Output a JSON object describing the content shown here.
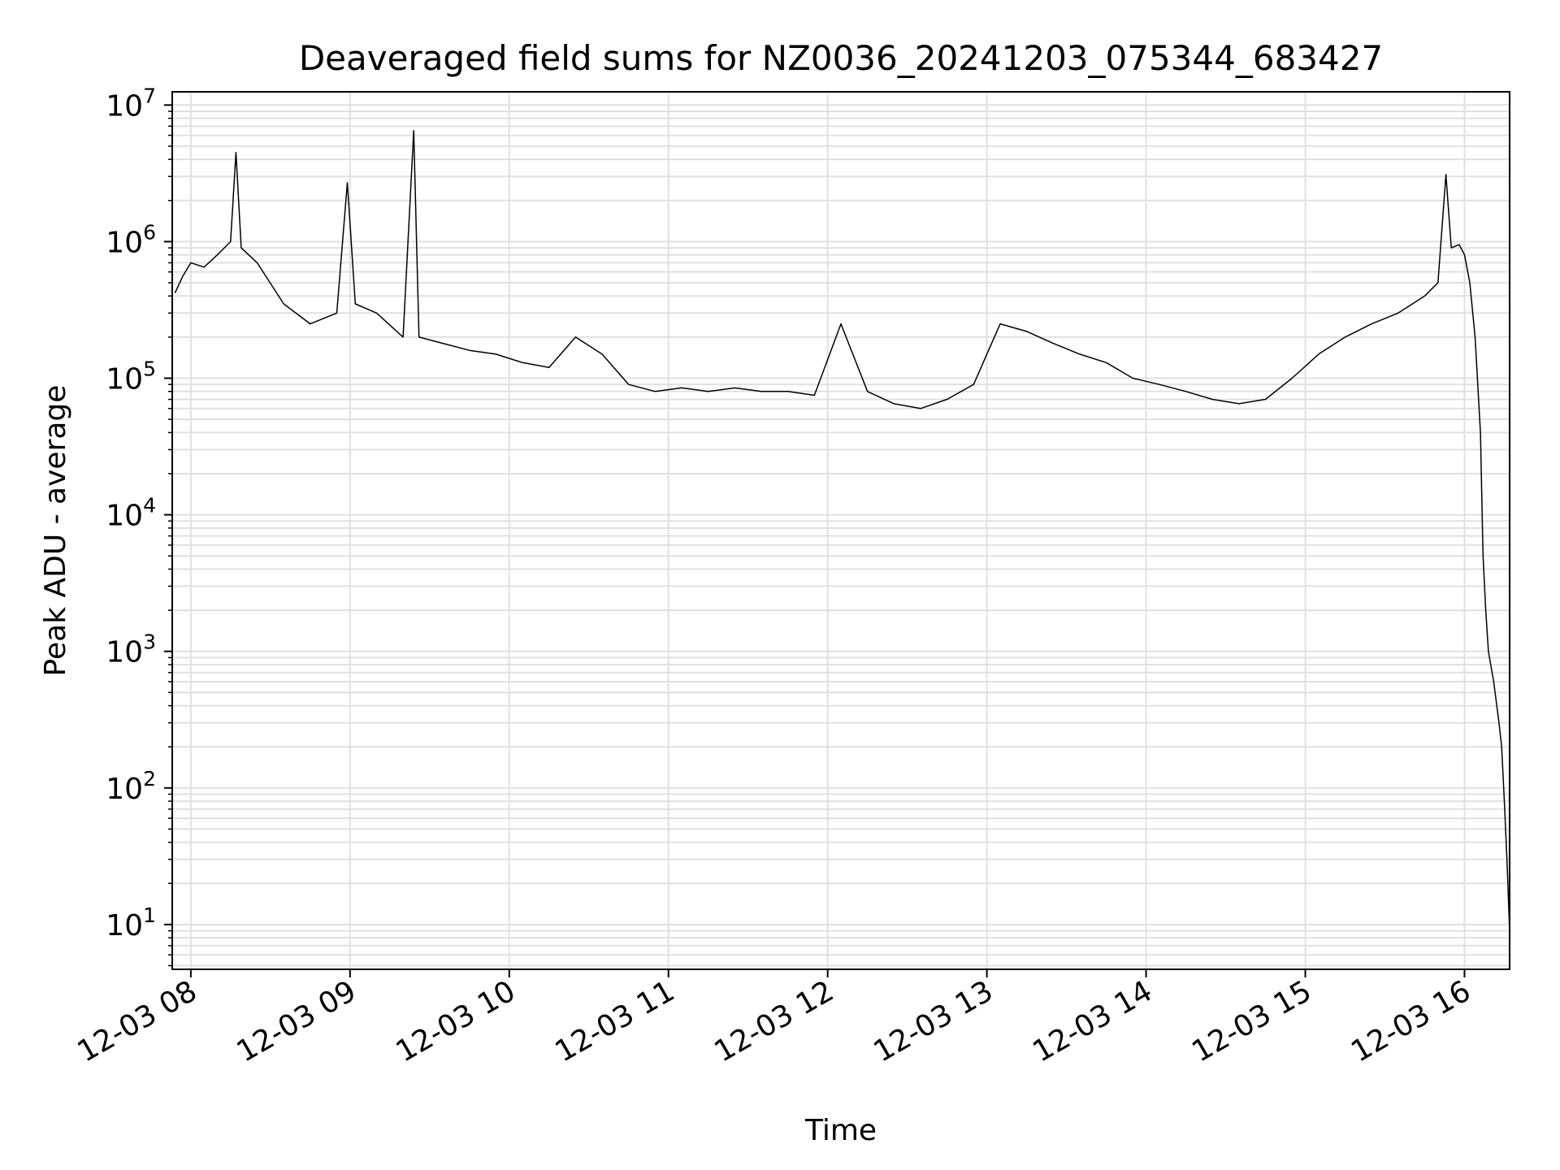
{
  "chart_data": {
    "type": "line",
    "title": "Deaveraged field sums for NZ0036_20241203_075344_683427",
    "xlabel": "Time",
    "ylabel": "Peak ADU - average",
    "yscale": "log",
    "ylim": [
      4.7,
      12500000
    ],
    "xlim": [
      "2024-12-03 07:53",
      "2024-12-03 16:17"
    ],
    "grid": true,
    "line_color": "#000000",
    "grid_color": "#e0e0e0",
    "x_ticks": [
      {
        "time": "2024-12-03 08:00",
        "label": "12-03 08"
      },
      {
        "time": "2024-12-03 09:00",
        "label": "12-03 09"
      },
      {
        "time": "2024-12-03 10:00",
        "label": "12-03 10"
      },
      {
        "time": "2024-12-03 11:00",
        "label": "12-03 11"
      },
      {
        "time": "2024-12-03 12:00",
        "label": "12-03 12"
      },
      {
        "time": "2024-12-03 13:00",
        "label": "12-03 13"
      },
      {
        "time": "2024-12-03 14:00",
        "label": "12-03 14"
      },
      {
        "time": "2024-12-03 15:00",
        "label": "12-03 15"
      },
      {
        "time": "2024-12-03 16:00",
        "label": "12-03 16"
      }
    ],
    "y_ticks": [
      {
        "value": 10,
        "base": "10",
        "exp": "1"
      },
      {
        "value": 100,
        "base": "10",
        "exp": "2"
      },
      {
        "value": 1000,
        "base": "10",
        "exp": "3"
      },
      {
        "value": 10000,
        "base": "10",
        "exp": "4"
      },
      {
        "value": 100000,
        "base": "10",
        "exp": "5"
      },
      {
        "value": 1000000,
        "base": "10",
        "exp": "6"
      },
      {
        "value": 10000000,
        "base": "10",
        "exp": "7"
      }
    ],
    "series": [
      {
        "points": [
          [
            "2024-12-03 07:54",
            420000
          ],
          [
            "2024-12-03 07:57",
            560000
          ],
          [
            "2024-12-03 08:00",
            700000
          ],
          [
            "2024-12-03 08:05",
            650000
          ],
          [
            "2024-12-03 08:10",
            800000
          ],
          [
            "2024-12-03 08:15",
            1000000
          ],
          [
            "2024-12-03 08:17",
            4500000
          ],
          [
            "2024-12-03 08:19",
            900000
          ],
          [
            "2024-12-03 08:25",
            700000
          ],
          [
            "2024-12-03 08:35",
            350000
          ],
          [
            "2024-12-03 08:45",
            250000
          ],
          [
            "2024-12-03 08:55",
            300000
          ],
          [
            "2024-12-03 08:59",
            2700000
          ],
          [
            "2024-12-03 09:02",
            350000
          ],
          [
            "2024-12-03 09:10",
            300000
          ],
          [
            "2024-12-03 09:20",
            200000
          ],
          [
            "2024-12-03 09:24",
            6500000
          ],
          [
            "2024-12-03 09:26",
            200000
          ],
          [
            "2024-12-03 09:35",
            180000
          ],
          [
            "2024-12-03 09:45",
            160000
          ],
          [
            "2024-12-03 09:55",
            150000
          ],
          [
            "2024-12-03 10:05",
            130000
          ],
          [
            "2024-12-03 10:15",
            120000
          ],
          [
            "2024-12-03 10:25",
            200000
          ],
          [
            "2024-12-03 10:35",
            150000
          ],
          [
            "2024-12-03 10:45",
            90000
          ],
          [
            "2024-12-03 10:55",
            80000
          ],
          [
            "2024-12-03 11:05",
            85000
          ],
          [
            "2024-12-03 11:15",
            80000
          ],
          [
            "2024-12-03 11:25",
            85000
          ],
          [
            "2024-12-03 11:35",
            80000
          ],
          [
            "2024-12-03 11:45",
            80000
          ],
          [
            "2024-12-03 11:55",
            75000
          ],
          [
            "2024-12-03 12:05",
            250000
          ],
          [
            "2024-12-03 12:15",
            80000
          ],
          [
            "2024-12-03 12:25",
            65000
          ],
          [
            "2024-12-03 12:35",
            60000
          ],
          [
            "2024-12-03 12:45",
            70000
          ],
          [
            "2024-12-03 12:55",
            90000
          ],
          [
            "2024-12-03 13:05",
            250000
          ],
          [
            "2024-12-03 13:15",
            220000
          ],
          [
            "2024-12-03 13:25",
            180000
          ],
          [
            "2024-12-03 13:35",
            150000
          ],
          [
            "2024-12-03 13:45",
            130000
          ],
          [
            "2024-12-03 13:55",
            100000
          ],
          [
            "2024-12-03 14:05",
            90000
          ],
          [
            "2024-12-03 14:15",
            80000
          ],
          [
            "2024-12-03 14:25",
            70000
          ],
          [
            "2024-12-03 14:35",
            65000
          ],
          [
            "2024-12-03 14:45",
            70000
          ],
          [
            "2024-12-03 14:55",
            100000
          ],
          [
            "2024-12-03 15:05",
            150000
          ],
          [
            "2024-12-03 15:15",
            200000
          ],
          [
            "2024-12-03 15:25",
            250000
          ],
          [
            "2024-12-03 15:35",
            300000
          ],
          [
            "2024-12-03 15:45",
            400000
          ],
          [
            "2024-12-03 15:50",
            500000
          ],
          [
            "2024-12-03 15:53",
            3100000
          ],
          [
            "2024-12-03 15:55",
            900000
          ],
          [
            "2024-12-03 15:58",
            950000
          ],
          [
            "2024-12-03 16:00",
            800000
          ],
          [
            "2024-12-03 16:02",
            500000
          ],
          [
            "2024-12-03 16:04",
            200000
          ],
          [
            "2024-12-03 16:06",
            40000
          ],
          [
            "2024-12-03 16:07",
            5000
          ],
          [
            "2024-12-03 16:08",
            2000
          ],
          [
            "2024-12-03 16:09",
            1000
          ],
          [
            "2024-12-03 16:11",
            600
          ],
          [
            "2024-12-03 16:13",
            300
          ],
          [
            "2024-12-03 16:14",
            200
          ],
          [
            "2024-12-03 16:15",
            80
          ],
          [
            "2024-12-03 16:16",
            30
          ],
          [
            "2024-12-03 16:17",
            9
          ]
        ]
      }
    ]
  }
}
